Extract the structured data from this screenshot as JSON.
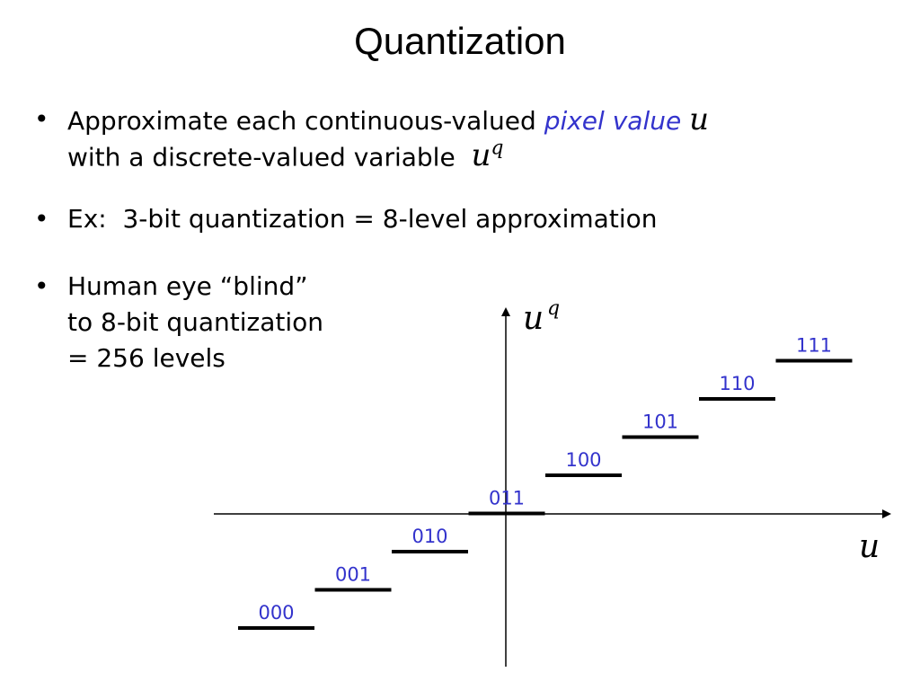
{
  "title": "Quantization",
  "bullets": [
    {
      "lines": [
        {
          "text": "Approximate each continuous-valued",
          "highlight": "pixel value",
          "math": "u"
        },
        {
          "text": "with a discrete-valued variable",
          "math": "u",
          "superscript": "q"
        }
      ]
    },
    {
      "lines": [
        {
          "text": "Ex:  3-bit quantization = 8-level approximation"
        }
      ]
    },
    {
      "lines": [
        {
          "text": "Human eye “blind”"
        },
        {
          "text": "to 8-bit quantization"
        },
        {
          "text": "= 256 levels"
        }
      ]
    }
  ],
  "diagram": {
    "x_axis_label": "u",
    "y_axis_label": "u",
    "y_axis_superscript": "q",
    "levels": [
      "000",
      "001",
      "010",
      "011",
      "100",
      "101",
      "110",
      "111"
    ]
  }
}
